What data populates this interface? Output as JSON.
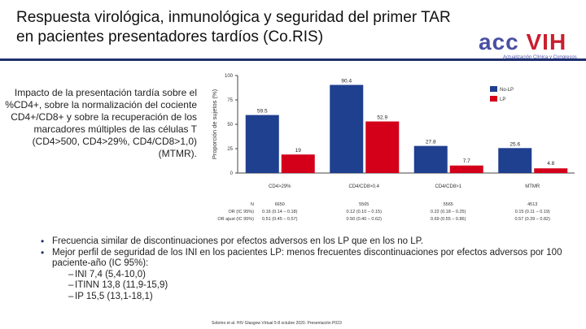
{
  "header": {
    "title_line1": "Respuesta virológica, inmunológica y seguridad del primer TAR",
    "title_line2": "en pacientes presentadores tardíos (Co.RIS)"
  },
  "logo": {
    "acc": "acc",
    "vih": "VIH",
    "subtitle": "Actualización Clínica y Congresos",
    "brand_color": "#4a4fa3",
    "accent_color": "#c8202f"
  },
  "side_text": "Impacto de la presentación tardía sobre el %CD4+, sobre la normalización del cociente CD4+/CD8+ y sobre la recuperación de los marcadores múltiples de las células T (CD4>500, CD4>29%, CD4/CD8>1,0) (MTMR).",
  "chart_data": {
    "type": "bar",
    "ylabel": "Proporción de sujetos (%)",
    "ylim": [
      0,
      100
    ],
    "yticks": [
      "0",
      "25",
      "50",
      "75",
      "100"
    ],
    "categories": [
      "CD4>29%",
      "CD4/CD8>0.4",
      "CD4/CD8>1",
      "MTMR"
    ],
    "series": [
      {
        "name": "No-LP",
        "color": "#1f3f8f",
        "values": [
          59.5,
          90.4,
          27.8,
          25.6
        ],
        "labels": [
          "59.5",
          "90.4",
          "27.8",
          "25.6"
        ]
      },
      {
        "name": "LP",
        "color": "#d4001a",
        "values": [
          19,
          52.9,
          7.7,
          4.8
        ],
        "labels": [
          "19",
          "52.9",
          "7.7",
          "4.8"
        ]
      }
    ],
    "table": {
      "row_labels": [
        "N",
        "OR (IC 95%)",
        "OR ajust (IC 95%)"
      ],
      "columns": [
        [
          "6650",
          "0.16 (0.14 – 0.18)",
          "0.51 (0.45 – 0.57)"
        ],
        [
          "5565",
          "0.12 (0.10 – 0.15)",
          "0.50 (0.40 – 0.62)"
        ],
        [
          "5565",
          "0.22 (0.18 – 0.25)",
          "0.69 (0.55 – 0.86)"
        ],
        [
          "4513",
          "0.15 (0.11 – 0.19)",
          "0.57 (0.39 – 0.82)"
        ]
      ]
    }
  },
  "bullets": [
    {
      "text": "Frecuencia similar de discontinuaciones por efectos adversos en los LP que en los no LP."
    },
    {
      "text": "Mejor perfil de seguridad de los INI en los pacientes LP: menos frecuentes discontinuaciones por efectos adversos por 100 paciente-año (IC 95%):"
    }
  ],
  "sub_bullets": [
    {
      "text": "INI 7,4 (5,4-10,0)"
    },
    {
      "text": "ITINN 13,8 (11,9-15,9)"
    },
    {
      "text": "IP 15,5 (13,1-18,1)"
    }
  ],
  "reference": "Sobrino et al. HIV Glasgow Virtual 5-8 octubre 2020. Presentación P023"
}
